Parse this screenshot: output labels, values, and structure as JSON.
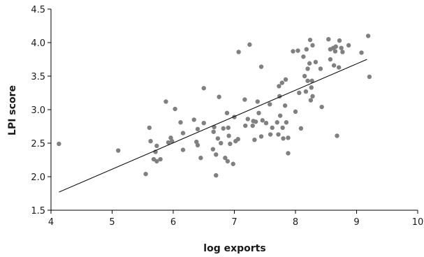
{
  "chart_data": {
    "type": "scatter",
    "xlabel": "log exports",
    "ylabel": "LPI score",
    "xlim": [
      4,
      10
    ],
    "ylim": [
      1.5,
      4.5
    ],
    "x_ticks": [
      4,
      5,
      6,
      7,
      8,
      9,
      10
    ],
    "x_tick_labels": [
      "4",
      "5",
      "6",
      "7",
      "8",
      "9",
      "10"
    ],
    "y_ticks": [
      1.5,
      2.0,
      2.5,
      3.0,
      3.5,
      4.0,
      4.5
    ],
    "y_tick_labels": [
      "1.5",
      "2.0",
      "2.5",
      "3.0",
      "3.5",
      "4.0",
      "4.5"
    ],
    "grid": false,
    "legend": "none",
    "point_color": "#808080",
    "trendline": {
      "x": [
        4.13,
        9.17
      ],
      "y": [
        1.77,
        3.75
      ]
    },
    "points": [
      [
        4.13,
        2.49
      ],
      [
        5.1,
        2.39
      ],
      [
        5.55,
        2.04
      ],
      [
        5.61,
        2.73
      ],
      [
        5.63,
        2.53
      ],
      [
        5.68,
        2.26
      ],
      [
        5.71,
        2.37
      ],
      [
        5.73,
        2.46
      ],
      [
        5.73,
        2.23
      ],
      [
        5.79,
        2.26
      ],
      [
        5.88,
        3.12
      ],
      [
        5.92,
        2.51
      ],
      [
        5.96,
        2.58
      ],
      [
        5.98,
        2.53
      ],
      [
        6.03,
        3.01
      ],
      [
        6.12,
        2.81
      ],
      [
        6.16,
        2.4
      ],
      [
        6.16,
        2.65
      ],
      [
        6.34,
        2.85
      ],
      [
        6.38,
        2.52
      ],
      [
        6.4,
        2.47
      ],
      [
        6.4,
        2.71
      ],
      [
        6.45,
        2.28
      ],
      [
        6.5,
        3.32
      ],
      [
        6.5,
        2.8
      ],
      [
        6.65,
        2.41
      ],
      [
        6.66,
        2.67
      ],
      [
        6.67,
        2.74
      ],
      [
        6.7,
        2.02
      ],
      [
        6.7,
        2.33
      ],
      [
        6.73,
        2.57
      ],
      [
        6.75,
        3.19
      ],
      [
        6.78,
        2.5
      ],
      [
        6.82,
        2.72
      ],
      [
        6.85,
        2.28
      ],
      [
        6.88,
        2.95
      ],
      [
        6.89,
        2.23
      ],
      [
        6.9,
        2.73
      ],
      [
        6.91,
        2.61
      ],
      [
        6.93,
        2.49
      ],
      [
        6.98,
        2.19
      ],
      [
        7.0,
        2.89
      ],
      [
        7.02,
        2.53
      ],
      [
        7.06,
        2.56
      ],
      [
        7.07,
        3.86
      ],
      [
        7.17,
        3.15
      ],
      [
        7.18,
        2.76
      ],
      [
        7.22,
        2.86
      ],
      [
        7.25,
        3.97
      ],
      [
        7.3,
        2.76
      ],
      [
        7.31,
        2.83
      ],
      [
        7.33,
        2.55
      ],
      [
        7.35,
        2.82
      ],
      [
        7.38,
        3.12
      ],
      [
        7.4,
        2.95
      ],
      [
        7.44,
        3.64
      ],
      [
        7.44,
        2.6
      ],
      [
        7.46,
        2.84
      ],
      [
        7.52,
        2.8
      ],
      [
        7.58,
        3.08
      ],
      [
        7.59,
        2.63
      ],
      [
        7.62,
        2.73
      ],
      [
        7.7,
        2.81
      ],
      [
        7.72,
        2.63
      ],
      [
        7.73,
        3.35
      ],
      [
        7.74,
        3.2
      ],
      [
        7.75,
        2.91
      ],
      [
        7.78,
        3.4
      ],
      [
        7.79,
        2.73
      ],
      [
        7.8,
        2.57
      ],
      [
        7.83,
        3.06
      ],
      [
        7.84,
        3.45
      ],
      [
        7.85,
        2.81
      ],
      [
        7.88,
        2.35
      ],
      [
        7.88,
        2.58
      ],
      [
        7.96,
        3.87
      ],
      [
        8.0,
        2.97
      ],
      [
        8.04,
        3.88
      ],
      [
        8.06,
        3.25
      ],
      [
        8.09,
        2.72
      ],
      [
        8.13,
        3.79
      ],
      [
        8.15,
        3.5
      ],
      [
        8.17,
        3.27
      ],
      [
        8.18,
        3.9
      ],
      [
        8.2,
        3.61
      ],
      [
        8.2,
        3.43
      ],
      [
        8.23,
        3.69
      ],
      [
        8.24,
        4.04
      ],
      [
        8.25,
        3.14
      ],
      [
        8.26,
        3.33
      ],
      [
        8.27,
        3.43
      ],
      [
        8.28,
        3.2
      ],
      [
        8.28,
        3.96
      ],
      [
        8.33,
        3.71
      ],
      [
        8.41,
        3.61
      ],
      [
        8.43,
        3.04
      ],
      [
        8.54,
        4.05
      ],
      [
        8.57,
        3.75
      ],
      [
        8.57,
        3.9
      ],
      [
        8.62,
        3.92
      ],
      [
        8.63,
        3.66
      ],
      [
        8.65,
        3.87
      ],
      [
        8.66,
        3.94
      ],
      [
        8.68,
        2.61
      ],
      [
        8.71,
        3.63
      ],
      [
        8.72,
        4.03
      ],
      [
        8.75,
        3.92
      ],
      [
        8.77,
        3.86
      ],
      [
        8.87,
        3.96
      ],
      [
        9.08,
        3.85
      ],
      [
        9.19,
        4.1
      ],
      [
        9.21,
        3.49
      ]
    ]
  }
}
